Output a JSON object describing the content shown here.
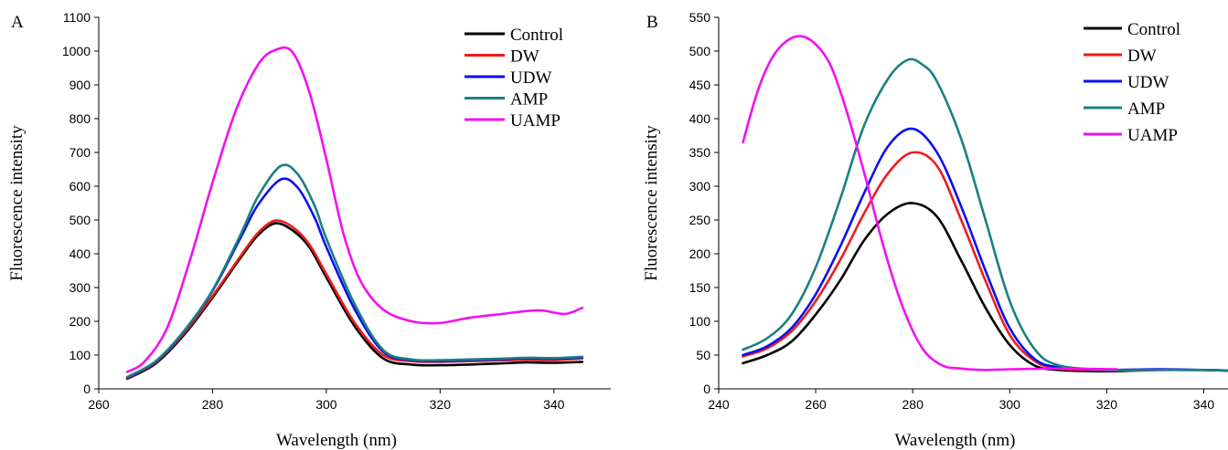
{
  "colors": {
    "Control": "#000000",
    "DW": "#ee1c1c",
    "UDW": "#0b10ee",
    "AMP": "#1a8080",
    "UAMP": "#f20ff2"
  },
  "chart_data": [
    {
      "type": "line",
      "panel_label": "A",
      "xlabel": "Wavelength (nm)",
      "ylabel": "Fluorescence intensity",
      "xlim": [
        260,
        350
      ],
      "ylim": [
        0,
        1100
      ],
      "xticks": [
        260,
        280,
        300,
        320,
        340
      ],
      "yticks": [
        0,
        100,
        200,
        300,
        400,
        500,
        600,
        700,
        800,
        900,
        1000,
        1100
      ],
      "legend_position": "top-right",
      "grid": false,
      "series": [
        {
          "name": "Control",
          "color": "#000000",
          "x": [
            265,
            270,
            275,
            280,
            285,
            288,
            291,
            294,
            297,
            300,
            305,
            310,
            315,
            320,
            325,
            330,
            335,
            340,
            345
          ],
          "y": [
            30,
            75,
            160,
            270,
            390,
            455,
            490,
            470,
            420,
            330,
            185,
            90,
            72,
            70,
            72,
            75,
            78,
            77,
            80
          ]
        },
        {
          "name": "DW",
          "color": "#ee1c1c",
          "x": [
            265,
            270,
            275,
            280,
            285,
            288,
            291,
            294,
            297,
            300,
            305,
            310,
            315,
            320,
            325,
            330,
            335,
            340,
            345
          ],
          "y": [
            32,
            78,
            165,
            275,
            395,
            462,
            498,
            480,
            428,
            340,
            195,
            100,
            82,
            80,
            82,
            84,
            86,
            85,
            90
          ]
        },
        {
          "name": "UDW",
          "color": "#0b10ee",
          "x": [
            265,
            270,
            275,
            280,
            285,
            288,
            292,
            295,
            298,
            300,
            305,
            310,
            315,
            320,
            325,
            330,
            335,
            340,
            345
          ],
          "y": [
            33,
            80,
            170,
            290,
            450,
            545,
            620,
            595,
            505,
            420,
            235,
            110,
            85,
            82,
            85,
            87,
            90,
            89,
            93
          ]
        },
        {
          "name": "AMP",
          "color": "#1a8080",
          "x": [
            265,
            270,
            275,
            280,
            285,
            288,
            292,
            295,
            298,
            300,
            305,
            310,
            315,
            320,
            325,
            330,
            335,
            340,
            345
          ],
          "y": [
            35,
            82,
            172,
            292,
            460,
            570,
            660,
            635,
            540,
            445,
            250,
            115,
            87,
            85,
            87,
            89,
            92,
            91,
            95
          ]
        },
        {
          "name": "UAMP",
          "color": "#f20ff2",
          "x": [
            265,
            268,
            272,
            276,
            280,
            284,
            288,
            291,
            294,
            297,
            300,
            303,
            306,
            310,
            315,
            320,
            325,
            330,
            335,
            338,
            342,
            345
          ],
          "y": [
            50,
            80,
            180,
            380,
            610,
            820,
            960,
            1003,
            998,
            880,
            680,
            460,
            320,
            235,
            200,
            195,
            210,
            220,
            230,
            232,
            222,
            240
          ]
        }
      ]
    },
    {
      "type": "line",
      "panel_label": "B",
      "xlabel": "Wavelength (nm)",
      "ylabel": "Fluorescence intensity",
      "xlim": [
        240,
        345
      ],
      "ylim": [
        0,
        550
      ],
      "xticks": [
        240,
        260,
        280,
        300,
        320,
        340
      ],
      "yticks": [
        0,
        50,
        100,
        150,
        200,
        250,
        300,
        350,
        400,
        450,
        500,
        550
      ],
      "legend_position": "top-right",
      "grid": false,
      "series": [
        {
          "name": "Control",
          "color": "#000000",
          "x": [
            245,
            250,
            255,
            260,
            265,
            270,
            275,
            280,
            285,
            290,
            295,
            300,
            305,
            310,
            320,
            330,
            340,
            345
          ],
          "y": [
            38,
            50,
            70,
            110,
            160,
            220,
            260,
            275,
            255,
            190,
            120,
            65,
            35,
            28,
            26,
            28,
            28,
            27
          ]
        },
        {
          "name": "DW",
          "color": "#ee1c1c",
          "x": [
            245,
            250,
            255,
            260,
            265,
            270,
            275,
            280,
            285,
            290,
            295,
            300,
            305,
            310,
            320,
            330,
            340,
            345
          ],
          "y": [
            48,
            60,
            85,
            130,
            190,
            260,
            320,
            350,
            330,
            250,
            160,
            80,
            42,
            30,
            27,
            28,
            28,
            27
          ]
        },
        {
          "name": "UDW",
          "color": "#0b10ee",
          "x": [
            245,
            250,
            255,
            260,
            265,
            270,
            275,
            280,
            285,
            290,
            295,
            300,
            305,
            310,
            320,
            330,
            340,
            345
          ],
          "y": [
            50,
            63,
            90,
            140,
            210,
            290,
            360,
            385,
            350,
            270,
            175,
            90,
            45,
            32,
            28,
            29,
            28,
            27
          ]
        },
        {
          "name": "AMP",
          "color": "#1a8080",
          "x": [
            245,
            250,
            255,
            260,
            265,
            270,
            275,
            279,
            282,
            285,
            290,
            295,
            300,
            305,
            310,
            320,
            330,
            340,
            345
          ],
          "y": [
            58,
            75,
            110,
            180,
            280,
            390,
            460,
            487,
            480,
            455,
            370,
            250,
            130,
            60,
            35,
            28,
            28,
            28,
            27
          ]
        },
        {
          "name": "UAMP",
          "color": "#f20ff2",
          "x": [
            245,
            248,
            251,
            254,
            257,
            260,
            263,
            266,
            270,
            274,
            278,
            282,
            286,
            290,
            295,
            300,
            310,
            322
          ],
          "y": [
            365,
            440,
            490,
            515,
            522,
            510,
            480,
            420,
            320,
            210,
            120,
            60,
            35,
            30,
            28,
            29,
            30,
            29
          ]
        }
      ]
    }
  ]
}
